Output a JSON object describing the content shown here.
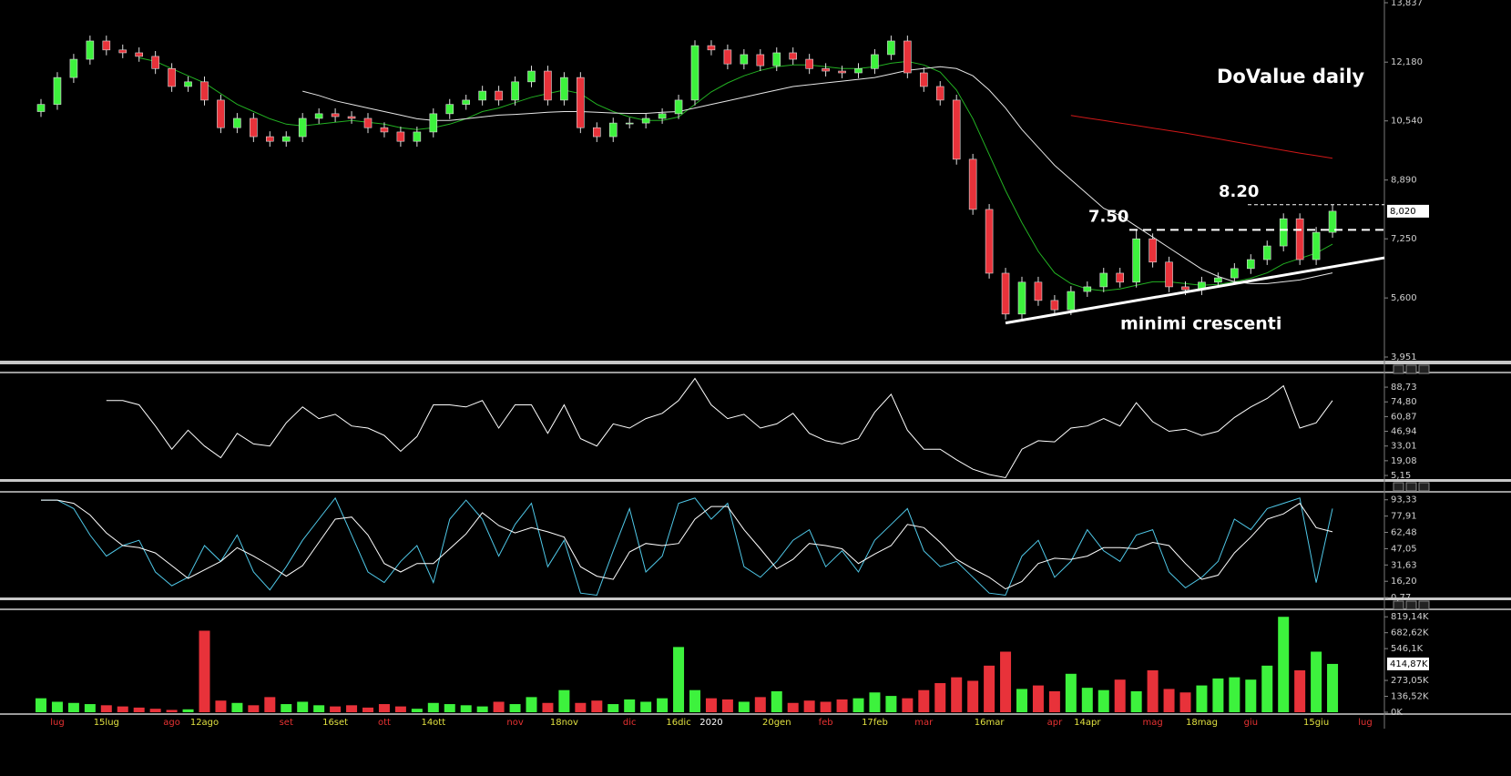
{
  "chart_data": [
    {
      "type": "candlestick",
      "title": "DoValue daily",
      "open": [
        10.8,
        11.0,
        11.75,
        12.26,
        12.77,
        12.52,
        12.44,
        12.34,
        12.0,
        11.5,
        11.63,
        11.12,
        10.35,
        10.61,
        10.1,
        9.97,
        10.1,
        10.61,
        10.74,
        10.66,
        10.61,
        10.35,
        10.23,
        9.97,
        10.23,
        10.74,
        11.0,
        11.12,
        11.37,
        11.12,
        11.63,
        11.93,
        11.12,
        11.75,
        10.35,
        10.1,
        10.48,
        10.48,
        10.61,
        10.74,
        11.12,
        12.64,
        12.52,
        12.13,
        12.39,
        12.08,
        12.44,
        12.26,
        12.0,
        11.93,
        11.88,
        12.0,
        12.39,
        12.77,
        11.88,
        11.5,
        11.12,
        9.47,
        8.07,
        6.29,
        5.15,
        6.04,
        5.53,
        5.27,
        5.78,
        5.91,
        6.29,
        6.04,
        7.25,
        6.6,
        5.91,
        5.83,
        6.04,
        6.16,
        6.42,
        6.67,
        7.05,
        7.81,
        6.67,
        7.43,
        null,
        null
      ],
      "high": [
        11.15,
        11.9,
        12.41,
        12.92,
        12.92,
        12.67,
        12.59,
        12.49,
        12.15,
        11.78,
        11.78,
        11.27,
        10.76,
        10.76,
        10.25,
        10.25,
        10.76,
        10.89,
        10.89,
        10.81,
        10.76,
        10.5,
        10.38,
        10.38,
        10.89,
        11.15,
        11.27,
        11.52,
        11.52,
        11.78,
        12.08,
        12.08,
        11.9,
        11.9,
        10.5,
        10.63,
        10.63,
        10.76,
        10.89,
        11.27,
        12.79,
        12.79,
        12.67,
        12.54,
        12.54,
        12.59,
        12.59,
        12.41,
        12.15,
        12.08,
        12.15,
        12.54,
        12.92,
        12.92,
        12.03,
        11.65,
        11.27,
        9.62,
        8.22,
        6.44,
        6.19,
        6.19,
        5.68,
        5.93,
        6.06,
        6.44,
        6.44,
        7.5,
        7.4,
        6.75,
        6.06,
        6.19,
        6.31,
        6.57,
        6.82,
        7.2,
        7.96,
        7.96,
        7.58,
        8.2,
        null,
        null
      ],
      "low": [
        10.65,
        10.85,
        11.6,
        12.11,
        12.37,
        12.29,
        12.19,
        11.85,
        11.35,
        11.35,
        10.97,
        10.2,
        10.2,
        9.95,
        9.82,
        9.82,
        9.95,
        10.46,
        10.51,
        10.46,
        10.2,
        10.08,
        9.82,
        9.82,
        10.08,
        10.59,
        10.85,
        10.97,
        10.97,
        10.97,
        11.48,
        10.97,
        10.97,
        10.2,
        9.95,
        9.95,
        10.33,
        10.33,
        10.46,
        10.59,
        10.97,
        12.37,
        11.98,
        11.98,
        11.93,
        11.93,
        12.11,
        11.85,
        11.78,
        11.73,
        11.73,
        11.85,
        12.24,
        11.73,
        11.35,
        10.97,
        9.32,
        7.92,
        6.14,
        5.0,
        5.0,
        5.38,
        5.12,
        5.12,
        5.63,
        5.76,
        5.89,
        5.89,
        6.45,
        5.76,
        5.68,
        5.68,
        5.89,
        6.01,
        6.27,
        6.52,
        6.9,
        6.52,
        6.52,
        7.28,
        null,
        null
      ],
      "close": [
        11.0,
        11.75,
        12.26,
        12.77,
        12.52,
        12.44,
        12.34,
        12.0,
        11.5,
        11.63,
        11.12,
        10.35,
        10.61,
        10.1,
        9.97,
        10.1,
        10.61,
        10.74,
        10.66,
        10.61,
        10.35,
        10.23,
        9.97,
        10.23,
        10.74,
        11.0,
        11.12,
        11.37,
        11.12,
        11.63,
        11.93,
        11.12,
        11.75,
        10.35,
        10.1,
        10.48,
        10.48,
        10.61,
        10.74,
        11.12,
        12.64,
        12.52,
        12.13,
        12.39,
        12.08,
        12.44,
        12.26,
        12.0,
        11.93,
        11.88,
        12.0,
        12.39,
        12.77,
        11.88,
        11.5,
        11.12,
        9.47,
        8.07,
        6.29,
        5.15,
        6.04,
        5.53,
        5.27,
        5.78,
        5.91,
        6.29,
        6.04,
        7.25,
        6.6,
        5.91,
        5.83,
        6.04,
        6.16,
        6.42,
        6.67,
        7.05,
        7.81,
        6.67,
        7.43,
        8.02,
        null,
        null
      ],
      "colors": {
        "up": "#3df23d",
        "down": "#e8323a"
      },
      "lines": [
        {
          "color": "#22b022",
          "values": [
            null,
            null,
            null,
            null,
            null,
            null,
            12.3,
            12.2,
            12.0,
            11.8,
            11.6,
            11.3,
            11.0,
            10.8,
            10.6,
            10.45,
            10.4,
            10.45,
            10.5,
            10.55,
            10.5,
            10.45,
            10.35,
            10.3,
            10.35,
            10.45,
            10.6,
            10.8,
            10.9,
            11.05,
            11.2,
            11.3,
            11.4,
            11.3,
            11.0,
            10.8,
            10.65,
            10.55,
            10.55,
            10.65,
            11.0,
            11.35,
            11.6,
            11.8,
            11.95,
            12.05,
            12.1,
            12.1,
            12.05,
            12.0,
            12.0,
            12.05,
            12.15,
            12.2,
            12.1,
            11.9,
            11.4,
            10.6,
            9.6,
            8.6,
            7.7,
            6.9,
            6.3,
            6.0,
            5.85,
            5.8,
            5.85,
            5.95,
            6.05,
            6.05,
            6.0,
            5.95,
            5.98,
            6.05,
            6.15,
            6.3,
            6.55,
            6.7,
            6.85,
            7.1,
            null,
            null
          ]
        },
        {
          "color": "#e6e6e6",
          "values": [
            null,
            null,
            null,
            null,
            null,
            null,
            null,
            null,
            null,
            null,
            null,
            null,
            null,
            null,
            null,
            null,
            11.37,
            11.25,
            11.1,
            11.0,
            10.9,
            10.8,
            10.7,
            10.6,
            10.55,
            10.55,
            10.6,
            10.65,
            10.7,
            10.72,
            10.75,
            10.78,
            10.8,
            10.8,
            10.78,
            10.76,
            10.75,
            10.75,
            10.78,
            10.8,
            10.9,
            11.0,
            11.1,
            11.2,
            11.3,
            11.4,
            11.5,
            11.55,
            11.6,
            11.65,
            11.7,
            11.75,
            11.85,
            11.95,
            12.0,
            12.05,
            12.0,
            11.8,
            11.4,
            10.9,
            10.3,
            9.8,
            9.3,
            8.9,
            8.5,
            8.1,
            7.9,
            7.6,
            7.3,
            7.0,
            6.7,
            6.4,
            6.2,
            6.05,
            6.0,
            6.0,
            6.05,
            6.1,
            6.2,
            6.3,
            null,
            null
          ]
        },
        {
          "color": "#d01818",
          "values": [
            null,
            null,
            null,
            null,
            null,
            null,
            null,
            null,
            null,
            null,
            null,
            null,
            null,
            null,
            null,
            null,
            null,
            null,
            null,
            null,
            null,
            null,
            null,
            null,
            null,
            null,
            null,
            null,
            null,
            null,
            null,
            null,
            null,
            null,
            null,
            null,
            null,
            null,
            null,
            null,
            null,
            null,
            null,
            null,
            null,
            null,
            null,
            null,
            null,
            null,
            null,
            null,
            null,
            null,
            null,
            null,
            null,
            null,
            null,
            null,
            null,
            null,
            null,
            10.69,
            10.62,
            10.55,
            10.48,
            10.41,
            10.34,
            10.27,
            10.2,
            10.12,
            10.04,
            9.96,
            9.88,
            9.8,
            9.72,
            9.64,
            9.57,
            9.5,
            null,
            null
          ]
        }
      ],
      "levels": [
        {
          "value": 8.2,
          "label": "8.20"
        },
        {
          "value": 7.5,
          "label": "7.50"
        }
      ],
      "trendline": {
        "label": "minimi crescenti",
        "values": [
          4.9,
          6.72
        ]
      },
      "last_price": {
        "value": 8.02,
        "label": "8,020"
      },
      "ylim": [
        3.951,
        13.837
      ],
      "yticks": [
        {
          "value": 13.837,
          "label": "13,837"
        },
        {
          "value": 12.18,
          "label": "12,180"
        },
        {
          "value": 10.54,
          "label": "10,540"
        },
        {
          "value": 8.89,
          "label": "8,890"
        },
        {
          "value": 7.25,
          "label": "7,250"
        },
        {
          "value": 5.6,
          "label": "5,600"
        },
        {
          "value": 3.951,
          "label": "3,951"
        }
      ]
    },
    {
      "type": "line",
      "series": [
        {
          "color": "#ffffff",
          "values": [
            null,
            null,
            null,
            null,
            76,
            76,
            72,
            52,
            30,
            48,
            33,
            22,
            45,
            35,
            33,
            55,
            70,
            59,
            63,
            52,
            50,
            43,
            28,
            42,
            72,
            72,
            70,
            76,
            50,
            72,
            72,
            45,
            72,
            40,
            33,
            54,
            50,
            59,
            64,
            76,
            97,
            72,
            59,
            63,
            50,
            54,
            64,
            45,
            38,
            35,
            40,
            65,
            82,
            48,
            30,
            30,
            20,
            11,
            6,
            3,
            30,
            38,
            37,
            50,
            52,
            59,
            52,
            74,
            56,
            47,
            49,
            43,
            47,
            60,
            70,
            78,
            90,
            50,
            55,
            76,
            null,
            null
          ]
        }
      ],
      "ylim": [
        0,
        100
      ],
      "yticks": [
        {
          "value": 88.73,
          "label": "88,73"
        },
        {
          "value": 74.8,
          "label": "74,80"
        },
        {
          "value": 60.87,
          "label": "60,87"
        },
        {
          "value": 46.94,
          "label": "46,94"
        },
        {
          "value": 33.01,
          "label": "33,01"
        },
        {
          "value": 19.08,
          "label": "19,08"
        },
        {
          "value": 5.15,
          "label": "5,15"
        }
      ]
    },
    {
      "type": "line",
      "series": [
        {
          "color": "#4fc8e8",
          "values": [
            93,
            93,
            85,
            60,
            40,
            50,
            55,
            25,
            12,
            20,
            50,
            35,
            60,
            25,
            8,
            30,
            55,
            75,
            95,
            60,
            25,
            15,
            35,
            50,
            15,
            75,
            93,
            75,
            40,
            70,
            90,
            30,
            55,
            5,
            3,
            45,
            85,
            25,
            40,
            90,
            95,
            75,
            90,
            30,
            20,
            35,
            55,
            65,
            30,
            45,
            25,
            55,
            70,
            85,
            45,
            30,
            35,
            20,
            5,
            3,
            40,
            55,
            20,
            35,
            65,
            45,
            35,
            60,
            65,
            25,
            10,
            20,
            35,
            75,
            65,
            85,
            90,
            95,
            15,
            85,
            null,
            null
          ]
        },
        {
          "color": "#ffffff",
          "values": [
            93,
            93,
            90,
            79,
            62,
            50,
            48,
            43,
            31,
            19,
            27,
            35,
            48,
            40,
            31,
            21,
            31,
            53,
            75,
            77,
            60,
            33,
            25,
            33,
            33,
            47,
            61,
            81,
            69,
            62,
            67,
            63,
            58,
            30,
            21,
            18,
            44,
            52,
            50,
            52,
            75,
            87,
            87,
            65,
            47,
            28,
            37,
            52,
            50,
            47,
            33,
            42,
            50,
            70,
            67,
            53,
            37,
            28,
            20,
            9,
            16,
            33,
            38,
            37,
            40,
            48,
            48,
            47,
            53,
            50,
            33,
            18,
            22,
            43,
            58,
            75,
            80,
            90,
            67,
            63,
            null,
            null
          ]
        }
      ],
      "ylim": [
        0,
        100
      ],
      "yticks": [
        {
          "value": 93.33,
          "label": "93,33"
        },
        {
          "value": 77.91,
          "label": "77,91"
        },
        {
          "value": 62.48,
          "label": "62,48"
        },
        {
          "value": 47.05,
          "label": "47,05"
        },
        {
          "value": 31.63,
          "label": "31,63"
        },
        {
          "value": 16.2,
          "label": "16,20"
        },
        {
          "value": 0.77,
          "label": "0,77"
        }
      ]
    },
    {
      "type": "bar",
      "categories": [
        null,
        "lug",
        null,
        null,
        "15lug",
        null,
        null,
        null,
        "ago",
        null,
        "12ago",
        null,
        null,
        null,
        null,
        "set",
        null,
        null,
        "16set",
        null,
        null,
        "ott",
        null,
        null,
        "14ott",
        null,
        null,
        null,
        null,
        "nov",
        null,
        null,
        "18nov",
        null,
        null,
        null,
        "dic",
        null,
        null,
        "16dic",
        null,
        "2020",
        null,
        null,
        null,
        "20gen",
        null,
        null,
        "feb",
        null,
        null,
        "17feb",
        null,
        null,
        "mar",
        null,
        null,
        null,
        "16mar",
        null,
        null,
        null,
        "apr",
        null,
        "14apr",
        null,
        null,
        null,
        "mag",
        null,
        null,
        "18mag",
        null,
        null,
        "giu",
        null,
        null,
        null,
        "15giu",
        null,
        null,
        "lug"
      ],
      "values": [
        120000,
        90000,
        80000,
        70000,
        60000,
        50000,
        40000,
        30000,
        20000,
        25000,
        700000,
        100000,
        80000,
        60000,
        130000,
        70000,
        90000,
        60000,
        50000,
        60000,
        40000,
        70000,
        50000,
        30000,
        80000,
        70000,
        60000,
        50000,
        90000,
        70000,
        130000,
        80000,
        190000,
        80000,
        100000,
        70000,
        110000,
        90000,
        120000,
        560000,
        190000,
        120000,
        110000,
        90000,
        130000,
        180000,
        80000,
        100000,
        90000,
        110000,
        120000,
        170000,
        140000,
        120000,
        190000,
        250000,
        300000,
        270000,
        400000,
        520000,
        200000,
        230000,
        180000,
        330000,
        210000,
        190000,
        280000,
        180000,
        360000,
        200000,
        170000,
        230000,
        290000,
        300000,
        280000,
        400000,
        819140,
        360000,
        520000,
        414870,
        null,
        null
      ],
      "last_value": {
        "value": 414870,
        "label": "414,87K"
      },
      "ylim": [
        0,
        860000
      ],
      "yticks": [
        {
          "value": 819140,
          "label": "819,14K"
        },
        {
          "value": 682620,
          "label": "682,62K"
        },
        {
          "value": 546100,
          "label": "546,1K"
        },
        {
          "value": 273050,
          "label": "273,05K"
        },
        {
          "value": 136520,
          "label": "136,52K"
        },
        {
          "value": 0,
          "label": "0K"
        }
      ]
    }
  ]
}
